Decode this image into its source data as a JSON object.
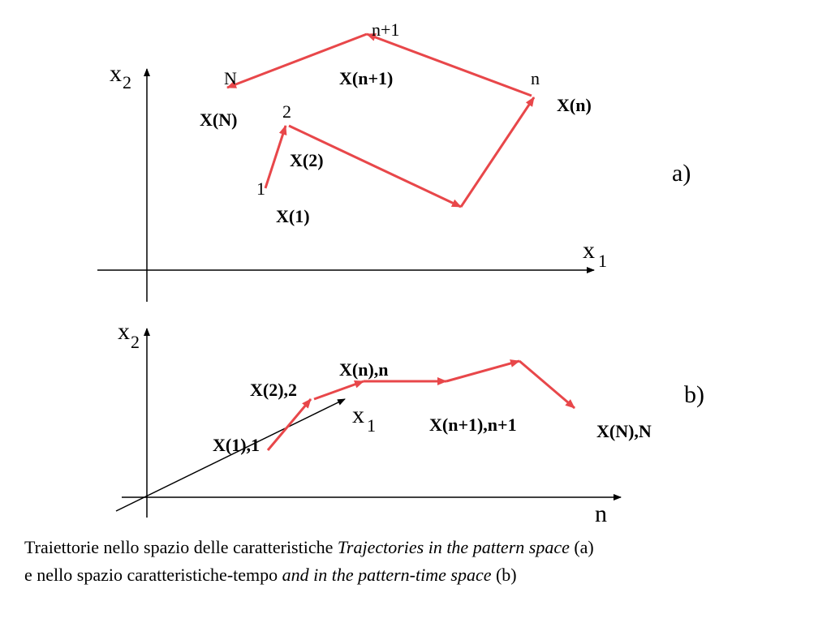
{
  "panel_a": {
    "label": "a)",
    "y_axis": {
      "base": "x",
      "sub": "2"
    },
    "x_axis": {
      "base": "x",
      "sub": "1"
    },
    "point_labels": [
      "1",
      "2",
      "n",
      "n+1",
      "N"
    ],
    "state_labels": [
      "X(1)",
      "X(2)",
      "X(n)",
      "X(n+1)",
      "X(N)"
    ]
  },
  "panel_b": {
    "label": "b)",
    "y_axis": {
      "base": "x",
      "sub": "2"
    },
    "depth_axis": {
      "base": "x",
      "sub": "1"
    },
    "time_axis": "n",
    "state_labels": [
      "X(1),1",
      "X(2),2",
      "X(n),n",
      "X(n+1),n+1",
      "X(N),N"
    ]
  },
  "caption": {
    "line1": [
      "Traiettorie nello spazio delle caratteristiche ",
      "Trajectories in the pattern space",
      " (a)"
    ],
    "line2": [
      "e nello spazio caratteristiche-tempo ",
      "and in the pattern-time space",
      " (b)"
    ]
  }
}
